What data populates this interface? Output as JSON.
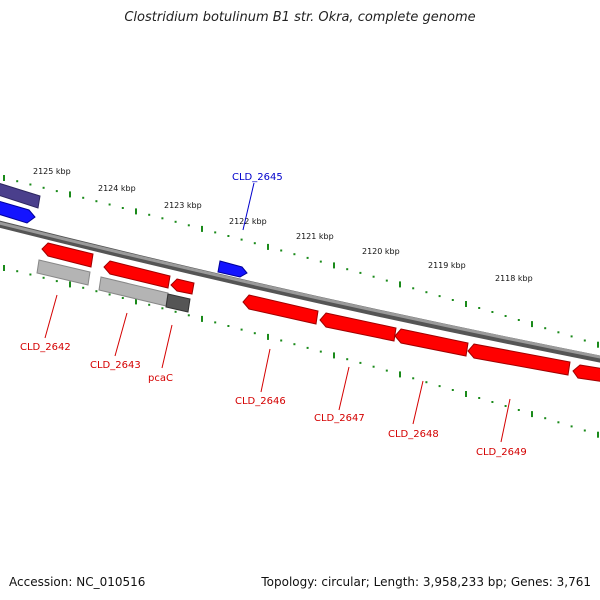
{
  "title": "Clostridium botulinum B1 str. Okra, complete genome",
  "accession": "Accession: NC_010516",
  "summary": "Topology: circular; Length: 3,958,233 bp; Genes: 3,761",
  "scale_labels": [
    "2125 kbp",
    "2124 kbp",
    "2123 kbp",
    "2122 kbp",
    "2121 kbp",
    "2120 kbp",
    "2119 kbp",
    "2118 kbp"
  ],
  "gene_labels": [
    "CLD_2645",
    "CLD_2642",
    "CLD_2643",
    "pcaC",
    "CLD_2646",
    "CLD_2647",
    "CLD_2648",
    "CLD_2649"
  ],
  "colors": {
    "backbone": "#808080",
    "ticks": "#1a8a1a",
    "forward_gene": "#1414ff",
    "reverse_gene": "#ff0000",
    "pseudo_gene": "#b4b4b4",
    "dark_gene": "#555555",
    "navy_gene": "#4a3f8c",
    "label_red": "#d40000",
    "label_blue": "#0000cc"
  }
}
